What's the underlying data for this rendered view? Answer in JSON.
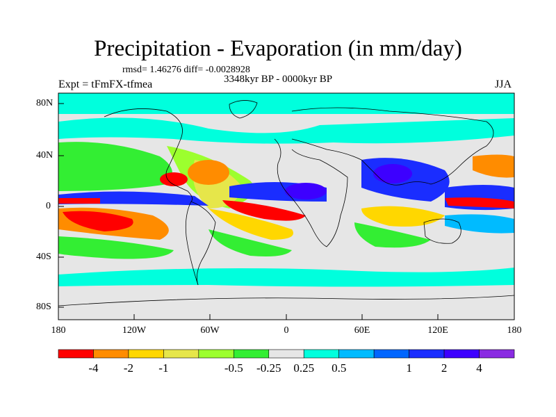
{
  "figure": {
    "title": "Precipitation - Evaporation (in mm/day)",
    "stats": "rmsd= 1.46276 diff= -0.0028928",
    "period": "3348kyr BP - 0000kyr BP",
    "experiment": "Expt = tFmFX-tfmea",
    "season": "JJA"
  },
  "axes": {
    "lat_labels": [
      "80N",
      "40N",
      "0",
      "40S",
      "80S"
    ],
    "lon_labels": [
      "180",
      "120W",
      "60W",
      "0",
      "60E",
      "120E",
      "180"
    ]
  },
  "colorbar": {
    "colors": [
      "#ff0000",
      "#ff8c00",
      "#ffd700",
      "#e6e64a",
      "#9cff2e",
      "#33ee33",
      "#e6e6e6",
      "#00ffdd",
      "#00bbff",
      "#0066ff",
      "#1a2dff",
      "#3d00ff",
      "#8a2be2"
    ],
    "labels": [
      "-4",
      "-2",
      "-1",
      "-0.5",
      "-0.25",
      "0.25",
      "0.5",
      "1",
      "2",
      "4"
    ]
  },
  "palette": {
    "ocean_background": "#e6e6e6",
    "coastline": "#000000"
  }
}
